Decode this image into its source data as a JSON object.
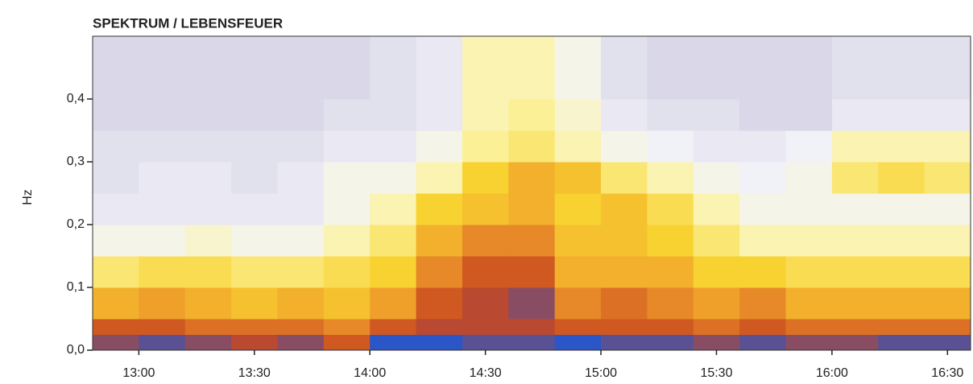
{
  "chart_data": {
    "type": "heatmap",
    "title": "SPEKTRUM / LEBENSFEUER",
    "y_label": "Hz",
    "x_bins": [
      12.8,
      13.0,
      13.2,
      13.4,
      13.6,
      13.8,
      14.0,
      14.2,
      14.4,
      14.6,
      14.8,
      15.0,
      15.2,
      15.4,
      15.6,
      15.8,
      16.0,
      16.2,
      16.4,
      16.6
    ],
    "y_bins": [
      0,
      0.025,
      0.05,
      0.1,
      0.15,
      0.2,
      0.25,
      0.3,
      0.35,
      0.4,
      0.5
    ],
    "values": [
      [
        0.9,
        0.95,
        0.9,
        0.85,
        0.9,
        0.8,
        1,
        1,
        0.95,
        0.95,
        1,
        0.95,
        0.95,
        0.9,
        0.95,
        0.9,
        0.9,
        0.95,
        0.95
      ],
      [
        0.8,
        0.8,
        0.75,
        0.75,
        0.75,
        0.7,
        0.8,
        0.85,
        0.85,
        0.85,
        0.8,
        0.8,
        0.8,
        0.75,
        0.8,
        0.75,
        0.75,
        0.75,
        0.75
      ],
      [
        0.6,
        0.65,
        0.6,
        0.55,
        0.6,
        0.55,
        0.65,
        0.8,
        0.85,
        0.9,
        0.7,
        0.75,
        0.7,
        0.65,
        0.7,
        0.6,
        0.6,
        0.6,
        0.6
      ],
      [
        0.4,
        0.45,
        0.45,
        0.4,
        0.4,
        0.45,
        0.5,
        0.7,
        0.8,
        0.8,
        0.6,
        0.6,
        0.6,
        0.5,
        0.5,
        0.45,
        0.45,
        0.45,
        0.45
      ],
      [
        0.2,
        0.2,
        0.25,
        0.2,
        0.2,
        0.3,
        0.4,
        0.6,
        0.7,
        0.7,
        0.55,
        0.55,
        0.5,
        0.4,
        0.3,
        0.3,
        0.3,
        0.3,
        0.3
      ],
      [
        0.1,
        0.1,
        0.1,
        0.1,
        0.1,
        0.2,
        0.3,
        0.5,
        0.55,
        0.6,
        0.5,
        0.55,
        0.45,
        0.3,
        0.2,
        0.2,
        0.2,
        0.2,
        0.2
      ],
      [
        0.05,
        0.1,
        0.1,
        0.05,
        0.1,
        0.2,
        0.2,
        0.3,
        0.5,
        0.6,
        0.55,
        0.4,
        0.3,
        0.2,
        0.15,
        0.2,
        0.4,
        0.45,
        0.4
      ],
      [
        0.05,
        0.05,
        0.05,
        0.05,
        0.05,
        0.1,
        0.1,
        0.2,
        0.35,
        0.4,
        0.3,
        0.2,
        0.15,
        0.1,
        0.1,
        0.15,
        0.3,
        0.3,
        0.3
      ],
      [
        0,
        0,
        0,
        0,
        0,
        0.05,
        0.05,
        0.1,
        0.3,
        0.35,
        0.25,
        0.1,
        0.05,
        0.05,
        0,
        0,
        0.1,
        0.1,
        0.1
      ],
      [
        0,
        0,
        0,
        0,
        0,
        0,
        0.05,
        0.1,
        0.3,
        0.3,
        0.2,
        0.05,
        0,
        0,
        0,
        0,
        0.05,
        0.05,
        0.05
      ]
    ],
    "colors": [
      "#d9d7e8",
      "#f4f4fa",
      "#fbf3a0",
      "#f8d230",
      "#ee9a2a",
      "#c9471f",
      "#2a56c8"
    ],
    "xlim": [
      12.8,
      16.6
    ],
    "xticks": [
      {
        "value": 13,
        "label": "13:00"
      },
      {
        "value": 13.5,
        "label": "13:30"
      },
      {
        "value": 14,
        "label": "14:00"
      },
      {
        "value": 14.5,
        "label": "14:30"
      },
      {
        "value": 15,
        "label": "15:00"
      },
      {
        "value": 15.5,
        "label": "15:30"
      },
      {
        "value": 16,
        "label": "16:00"
      },
      {
        "value": 16.5,
        "label": "16:30"
      }
    ],
    "ylim": [
      0,
      0.5
    ],
    "yticks": [
      {
        "value": 0,
        "label": "0,0"
      },
      {
        "value": 0.1,
        "label": "0,1"
      },
      {
        "value": 0.2,
        "label": "0,2"
      },
      {
        "value": 0.3,
        "label": "0,3"
      },
      {
        "value": 0.4,
        "label": "0,4"
      }
    ]
  }
}
